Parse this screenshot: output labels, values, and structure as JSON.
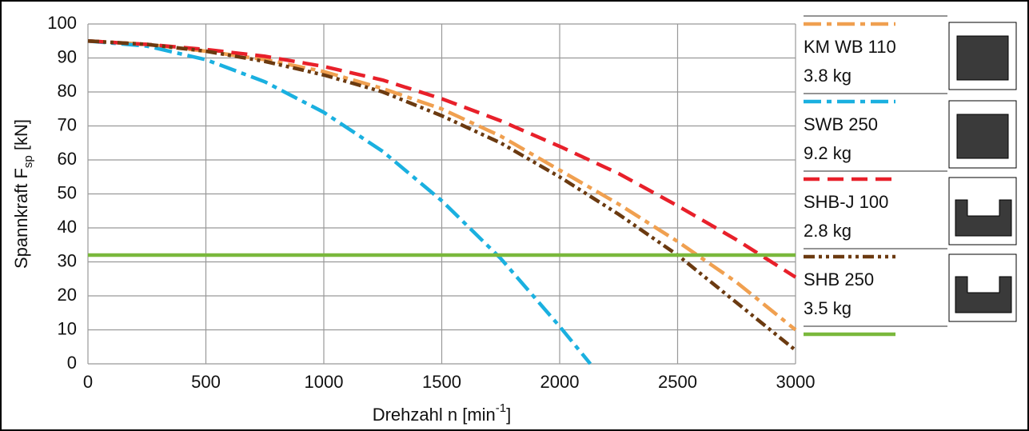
{
  "chart_data": {
    "type": "line",
    "x_label": {
      "parts": [
        "Drehzahl n [min",
        "-1",
        "]"
      ]
    },
    "y_label": {
      "parts": [
        "Spannkraft  F",
        "sp",
        " [kN]"
      ]
    },
    "xlim": [
      0,
      3000
    ],
    "xticks": [
      0,
      500,
      1000,
      1500,
      2000,
      2500,
      3000
    ],
    "ylim": [
      0,
      100
    ],
    "yticks": [
      0,
      10,
      20,
      30,
      40,
      50,
      60,
      70,
      80,
      90,
      100
    ],
    "grid": true,
    "legend": "right",
    "series": [
      {
        "name": "KM WB 110",
        "note": "3.8 kg",
        "color": "#f0a050",
        "dash": "dash-dot",
        "x": [
          0,
          250,
          500,
          750,
          1000,
          1250,
          1500,
          1750,
          2000,
          2250,
          2500,
          2750,
          3000
        ],
        "values": [
          95,
          94,
          92,
          89.5,
          86,
          81,
          75,
          67,
          57,
          47,
          36,
          24,
          10
        ]
      },
      {
        "name": "SWB 250",
        "note": "9.2 kg",
        "color": "#1ab0e0",
        "dash": "dash-dot",
        "x": [
          0,
          250,
          500,
          750,
          1000,
          1250,
          1500,
          1750,
          2000,
          2130
        ],
        "values": [
          95,
          93.5,
          89.5,
          83,
          74,
          62.5,
          48,
          31,
          11,
          0
        ]
      },
      {
        "name": "SHB-J 100",
        "note": "2.8 kg",
        "color": "#e8202a",
        "dash": "dashed",
        "x": [
          0,
          250,
          500,
          750,
          1000,
          1250,
          1500,
          1750,
          2000,
          2250,
          2500,
          2750,
          3000
        ],
        "values": [
          95,
          94,
          92.5,
          90.5,
          87.5,
          83.5,
          78,
          71.5,
          64,
          56,
          46.5,
          36.5,
          25.5
        ]
      },
      {
        "name": "SHB 250",
        "note": "3.5 kg",
        "color": "#6b3a10",
        "dash": "dash-dot-dot",
        "x": [
          0,
          250,
          500,
          750,
          1000,
          1250,
          1500,
          1750,
          2000,
          2250,
          2500,
          2750,
          3000
        ],
        "values": [
          95,
          94,
          92,
          89,
          85,
          80,
          73,
          65,
          55,
          44,
          32,
          18,
          4
        ]
      },
      {
        "color": "#7ab83c",
        "dash": "solid",
        "x": [
          0,
          3000
        ],
        "values": [
          32,
          32
        ]
      }
    ]
  }
}
